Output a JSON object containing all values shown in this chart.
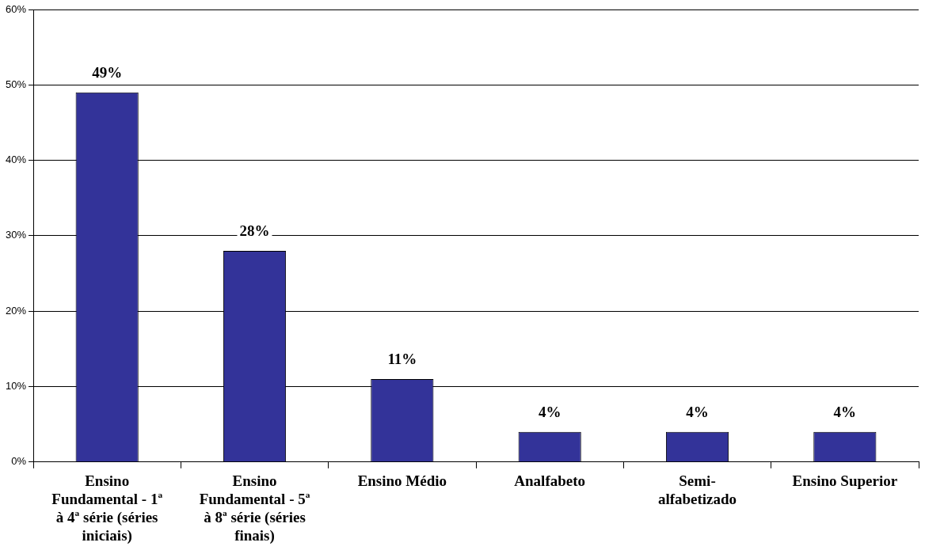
{
  "chart_data": {
    "type": "bar",
    "categories": [
      "Ensino Fundamental - 1ª à 4ª série (séries iniciais)",
      "Ensino Fundamental - 5ª à 8ª série (séries finais)",
      "Ensino Médio",
      "Analfabeto",
      "Semi-alfabetizado",
      "Ensino Superior"
    ],
    "values": [
      49,
      28,
      11,
      4,
      4,
      4
    ],
    "value_labels": [
      "49%",
      "28%",
      "11%",
      "4%",
      "4%",
      "4%"
    ],
    "color": "#333399",
    "ylim": [
      0,
      60
    ],
    "yticks": [
      {
        "value": 0,
        "label": "0%"
      },
      {
        "value": 10,
        "label": "10%"
      },
      {
        "value": 20,
        "label": "20%"
      },
      {
        "value": 30,
        "label": "30%"
      },
      {
        "value": 40,
        "label": "40%"
      },
      {
        "value": 50,
        "label": "50%"
      },
      {
        "value": 60,
        "label": "60%"
      }
    ],
    "grid": "y",
    "legend": false
  }
}
